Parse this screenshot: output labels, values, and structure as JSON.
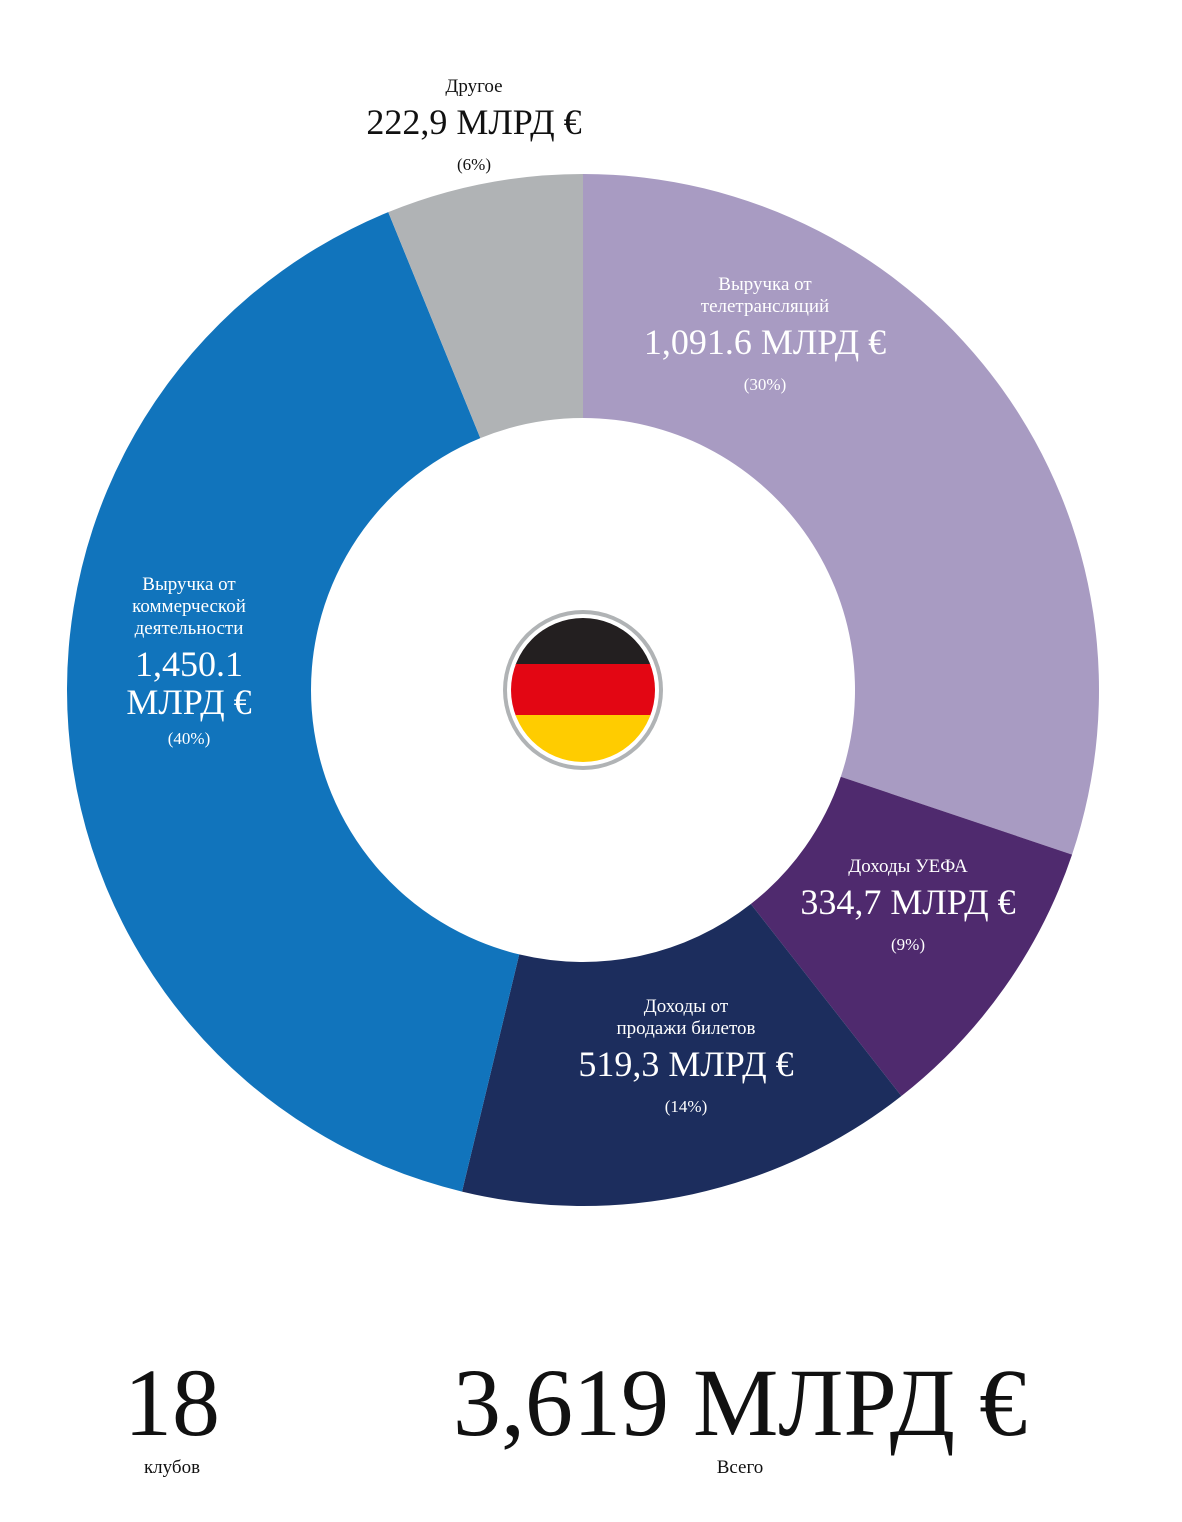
{
  "chart_data": {
    "type": "pie",
    "variant": "donut",
    "unit": "МЛРД €",
    "slices": [
      {
        "label": "Выручка от телетрансляций",
        "value_text": "1,091.6 МЛРД €",
        "percent_text": "(30%)",
        "value": 1091.6,
        "color": "#a89bc2"
      },
      {
        "label": "Доходы УЕФА",
        "value_text": "334,7 МЛРД €",
        "percent_text": "(9%)",
        "value": 334.7,
        "color": "#4f2a6e"
      },
      {
        "label": "Доходы от продажи билетов",
        "value_text": "519,3 МЛРД €",
        "percent_text": "(14%)",
        "value": 519.3,
        "color": "#1c2d5d"
      },
      {
        "label": "Выручка от коммерческой деятельности",
        "value_text": "1,450.1 МЛРД €",
        "percent_text": "(40%)",
        "value": 1450.1,
        "color": "#1174bc"
      },
      {
        "label": "Другое",
        "value_text": "222,9 МЛРД €",
        "percent_text": "(6%)",
        "value": 222.9,
        "color": "#b0b3b5"
      }
    ]
  },
  "center_flag": {
    "icon": "germany-flag-icon",
    "stripes": [
      "#231f20",
      "#e30613",
      "#ffcc00"
    ],
    "ring_color": "#b0b3b5"
  },
  "stats": {
    "clubs_value": "18",
    "clubs_label": "клубов",
    "total_value": "3,619 МЛРД €",
    "total_label": "Всего"
  }
}
